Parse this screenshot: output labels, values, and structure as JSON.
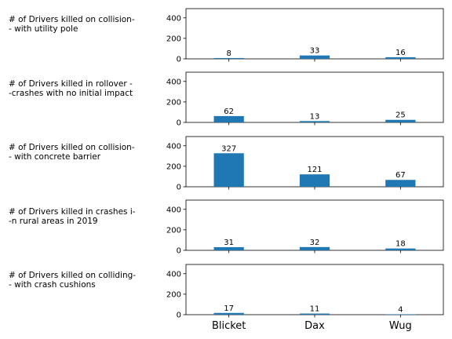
{
  "chart_data": {
    "type": "bar",
    "layout": "stacked-subplots",
    "categories": [
      "Blicket",
      "Dax",
      "Wug"
    ],
    "ylim": [
      0,
      490
    ],
    "yticks": [
      0,
      200,
      400
    ],
    "bar_color": "#1f77b4",
    "grid": false,
    "legend": "none",
    "subplots": [
      {
        "label": "# of Drivers killed on collision-\n- with utility pole",
        "values": [
          8,
          33,
          16
        ]
      },
      {
        "label": "# of Drivers killed in rollover -\n-crashes with no initial impact",
        "values": [
          62,
          13,
          25
        ]
      },
      {
        "label": "# of Drivers killed on collision-\n- with concrete barrier",
        "values": [
          327,
          121,
          67
        ]
      },
      {
        "label": "# of Drivers killed in crashes i-\n-n rural areas in 2019",
        "values": [
          31,
          32,
          18
        ]
      },
      {
        "label": "# of Drivers killed on colliding-\n- with crash cushions",
        "values": [
          17,
          11,
          4
        ]
      }
    ]
  }
}
